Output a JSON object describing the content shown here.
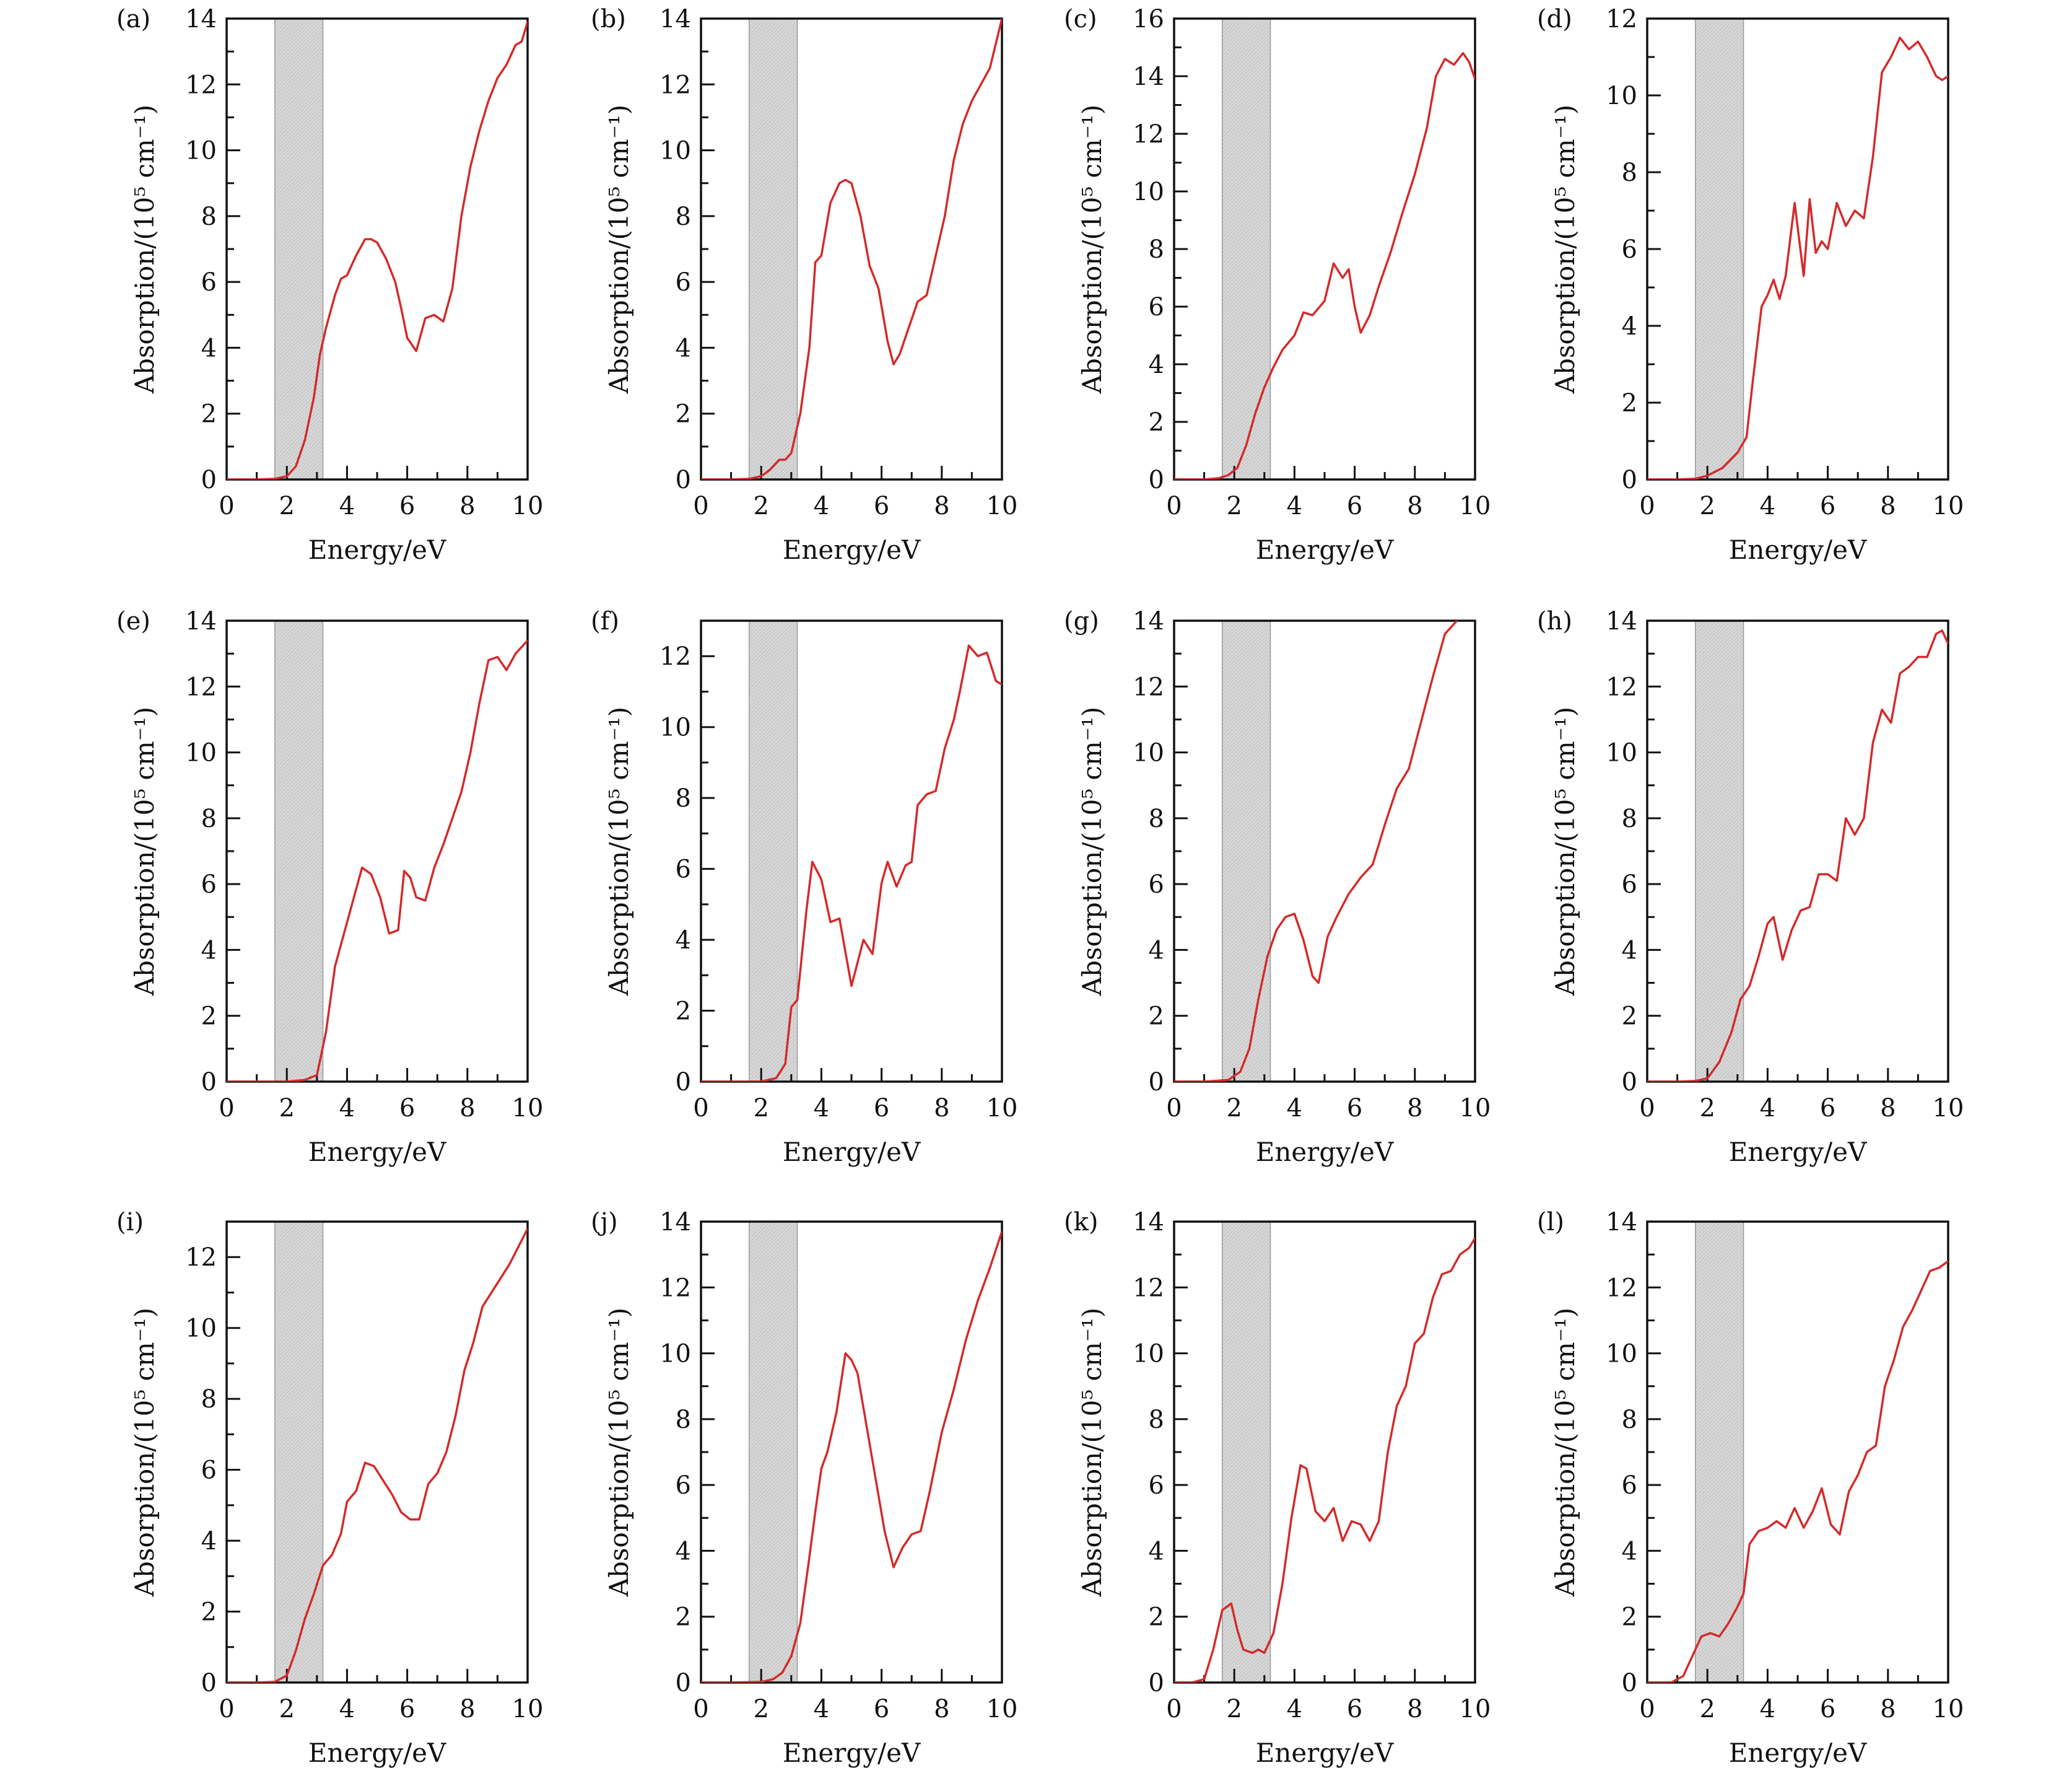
{
  "colors": {
    "curve": "#d42a2a",
    "band": "#d8d8d8",
    "axis": "#111111"
  },
  "chart_data": [
    {
      "type": "line",
      "label": "(a)",
      "xlabel": "Energy/eV",
      "ylabel": "Absorption/(10⁵ cm⁻¹)",
      "xlim": [
        0,
        10
      ],
      "ylim": [
        0,
        14
      ],
      "xticks": [
        0,
        2,
        4,
        6,
        8,
        10
      ],
      "yticks": [
        0,
        2,
        4,
        6,
        8,
        10,
        12,
        14
      ],
      "band": [
        1.6,
        3.2
      ],
      "x": [
        0,
        1,
        1.6,
        2.0,
        2.3,
        2.6,
        2.9,
        3.1,
        3.3,
        3.6,
        3.8,
        4.0,
        4.3,
        4.6,
        4.8,
        5.0,
        5.3,
        5.6,
        5.8,
        6.0,
        6.3,
        6.6,
        6.9,
        7.2,
        7.5,
        7.8,
        8.1,
        8.4,
        8.7,
        9.0,
        9.3,
        9.6,
        9.8,
        10.0
      ],
      "y": [
        0,
        0,
        0.02,
        0.1,
        0.4,
        1.2,
        2.5,
        3.8,
        4.6,
        5.6,
        6.1,
        6.2,
        6.8,
        7.3,
        7.3,
        7.2,
        6.7,
        6.0,
        5.2,
        4.3,
        3.9,
        4.9,
        5.0,
        4.8,
        5.8,
        8.0,
        9.5,
        10.6,
        11.5,
        12.2,
        12.6,
        13.2,
        13.3,
        13.9
      ]
    },
    {
      "type": "line",
      "label": "(b)",
      "xlabel": "Energy/eV",
      "ylabel": "Absorption/(10⁵ cm⁻¹)",
      "xlim": [
        0,
        10
      ],
      "ylim": [
        0,
        14
      ],
      "xticks": [
        0,
        2,
        4,
        6,
        8,
        10
      ],
      "yticks": [
        0,
        2,
        4,
        6,
        8,
        10,
        12,
        14
      ],
      "band": [
        1.6,
        3.2
      ],
      "x": [
        0,
        1,
        1.6,
        2.0,
        2.3,
        2.6,
        2.8,
        3.0,
        3.3,
        3.6,
        3.8,
        4.0,
        4.3,
        4.6,
        4.8,
        5.0,
        5.3,
        5.6,
        5.9,
        6.2,
        6.4,
        6.6,
        6.9,
        7.2,
        7.5,
        7.8,
        8.1,
        8.4,
        8.7,
        9.0,
        9.3,
        9.6,
        10.0
      ],
      "y": [
        0,
        0,
        0.02,
        0.1,
        0.3,
        0.6,
        0.6,
        0.8,
        2.0,
        4.0,
        6.6,
        6.8,
        8.4,
        9.0,
        9.1,
        9.0,
        8.0,
        6.5,
        5.8,
        4.2,
        3.5,
        3.8,
        4.6,
        5.4,
        5.6,
        6.8,
        8.0,
        9.7,
        10.8,
        11.5,
        12.0,
        12.5,
        14.0
      ]
    },
    {
      "type": "line",
      "label": "(c)",
      "xlabel": "Energy/eV",
      "ylabel": "Absorption/(10⁵ cm⁻¹)",
      "xlim": [
        0,
        10
      ],
      "ylim": [
        0,
        16
      ],
      "xticks": [
        0,
        2,
        4,
        6,
        8,
        10
      ],
      "yticks": [
        0,
        2,
        4,
        6,
        8,
        10,
        12,
        14,
        16
      ],
      "band": [
        1.6,
        3.2
      ],
      "x": [
        0,
        1,
        1.5,
        1.8,
        2.1,
        2.4,
        2.7,
        3.0,
        3.3,
        3.6,
        4.0,
        4.3,
        4.6,
        5.0,
        5.3,
        5.6,
        5.8,
        6.0,
        6.2,
        6.5,
        6.8,
        7.2,
        7.6,
        8.0,
        8.4,
        8.7,
        9.0,
        9.3,
        9.6,
        9.8,
        10.0
      ],
      "y": [
        0,
        0,
        0.05,
        0.15,
        0.4,
        1.2,
        2.3,
        3.2,
        3.9,
        4.5,
        5.0,
        5.8,
        5.7,
        6.2,
        7.5,
        7.0,
        7.3,
        6.0,
        5.1,
        5.7,
        6.7,
        7.9,
        9.3,
        10.6,
        12.2,
        14.0,
        14.6,
        14.4,
        14.8,
        14.5,
        13.9
      ]
    },
    {
      "type": "line",
      "label": "(d)",
      "xlabel": "Energy/eV",
      "ylabel": "Absorption/(10⁵ cm⁻¹)",
      "xlim": [
        0,
        10
      ],
      "ylim": [
        0,
        12
      ],
      "xticks": [
        0,
        2,
        4,
        6,
        8,
        10
      ],
      "yticks": [
        0,
        2,
        4,
        6,
        8,
        10,
        12
      ],
      "band": [
        1.6,
        3.2
      ],
      "x": [
        0,
        1,
        1.6,
        2.0,
        2.5,
        3.0,
        3.3,
        3.5,
        3.8,
        4.0,
        4.2,
        4.4,
        4.6,
        4.9,
        5.2,
        5.4,
        5.6,
        5.8,
        6.0,
        6.3,
        6.6,
        6.9,
        7.2,
        7.5,
        7.8,
        8.1,
        8.4,
        8.7,
        9.0,
        9.3,
        9.6,
        9.8,
        10.0
      ],
      "y": [
        0,
        0,
        0.02,
        0.1,
        0.3,
        0.7,
        1.1,
        2.5,
        4.5,
        4.8,
        5.2,
        4.7,
        5.3,
        7.2,
        5.3,
        7.3,
        5.9,
        6.2,
        6.0,
        7.2,
        6.6,
        7.0,
        6.8,
        8.4,
        10.6,
        11.0,
        11.5,
        11.2,
        11.4,
        11.0,
        10.5,
        10.4,
        10.5
      ]
    },
    {
      "type": "line",
      "label": "(e)",
      "xlabel": "Energy/eV",
      "ylabel": "Absorption/(10⁵ cm⁻¹)",
      "xlim": [
        0,
        10
      ],
      "ylim": [
        0,
        14
      ],
      "xticks": [
        0,
        2,
        4,
        6,
        8,
        10
      ],
      "yticks": [
        0,
        2,
        4,
        6,
        8,
        10,
        12,
        14
      ],
      "band": [
        1.6,
        3.2
      ],
      "x": [
        0,
        1,
        2.0,
        2.6,
        3.0,
        3.3,
        3.6,
        3.9,
        4.2,
        4.5,
        4.8,
        5.1,
        5.4,
        5.7,
        5.9,
        6.1,
        6.3,
        6.6,
        6.9,
        7.2,
        7.5,
        7.8,
        8.1,
        8.4,
        8.7,
        9.0,
        9.3,
        9.6,
        10.0
      ],
      "y": [
        0,
        0,
        0,
        0.05,
        0.2,
        1.5,
        3.5,
        4.5,
        5.5,
        6.5,
        6.3,
        5.6,
        4.5,
        4.6,
        6.4,
        6.2,
        5.6,
        5.5,
        6.5,
        7.2,
        8.0,
        8.8,
        10.0,
        11.5,
        12.8,
        12.9,
        12.5,
        13.0,
        13.4
      ]
    },
    {
      "type": "line",
      "label": "(f)",
      "xlabel": "Energy/eV",
      "ylabel": "Absorption/(10⁵ cm⁻¹)",
      "xlim": [
        0,
        10
      ],
      "ylim": [
        0,
        13
      ],
      "xticks": [
        0,
        2,
        4,
        6,
        8,
        10
      ],
      "yticks": [
        0,
        2,
        4,
        6,
        8,
        10,
        12
      ],
      "band": [
        1.6,
        3.2
      ],
      "x": [
        0,
        1,
        2.0,
        2.5,
        2.8,
        3.0,
        3.2,
        3.5,
        3.7,
        4.0,
        4.3,
        4.6,
        5.0,
        5.4,
        5.7,
        6.0,
        6.2,
        6.5,
        6.8,
        7.0,
        7.2,
        7.5,
        7.8,
        8.1,
        8.4,
        8.6,
        8.9,
        9.2,
        9.5,
        9.8,
        10.0
      ],
      "y": [
        0,
        0,
        0,
        0.1,
        0.5,
        2.1,
        2.3,
        4.8,
        6.2,
        5.7,
        4.5,
        4.6,
        2.7,
        4.0,
        3.6,
        5.6,
        6.2,
        5.5,
        6.1,
        6.2,
        7.8,
        8.1,
        8.2,
        9.4,
        10.2,
        11.0,
        12.3,
        12.0,
        12.1,
        11.3,
        11.2
      ]
    },
    {
      "type": "line",
      "label": "(g)",
      "xlabel": "Energy/eV",
      "ylabel": "Absorption/(10⁵ cm⁻¹)",
      "xlim": [
        0,
        10
      ],
      "ylim": [
        0,
        14
      ],
      "xticks": [
        0,
        2,
        4,
        6,
        8,
        10
      ],
      "yticks": [
        0,
        2,
        4,
        6,
        8,
        10,
        12,
        14
      ],
      "band": [
        1.6,
        3.2
      ],
      "x": [
        0,
        1,
        1.8,
        2.2,
        2.5,
        2.8,
        3.1,
        3.4,
        3.7,
        4.0,
        4.3,
        4.6,
        4.8,
        5.1,
        5.4,
        5.8,
        6.2,
        6.6,
        7.0,
        7.4,
        7.8,
        8.2,
        8.6,
        9.0,
        9.4
      ],
      "y": [
        0,
        0,
        0.05,
        0.3,
        1.0,
        2.5,
        3.8,
        4.6,
        5.0,
        5.1,
        4.3,
        3.2,
        3.0,
        4.4,
        5.0,
        5.7,
        6.2,
        6.6,
        7.8,
        8.9,
        9.5,
        10.9,
        12.3,
        13.6,
        14.0
      ]
    },
    {
      "type": "line",
      "label": "(h)",
      "xlabel": "Energy/eV",
      "ylabel": "Absorption/(10⁵ cm⁻¹)",
      "xlim": [
        0,
        10
      ],
      "ylim": [
        0,
        14
      ],
      "xticks": [
        0,
        2,
        4,
        6,
        8,
        10
      ],
      "yticks": [
        0,
        2,
        4,
        6,
        8,
        10,
        12,
        14
      ],
      "band": [
        1.6,
        3.2
      ],
      "x": [
        0,
        1,
        1.6,
        2.0,
        2.4,
        2.8,
        3.1,
        3.4,
        3.7,
        4.0,
        4.2,
        4.5,
        4.8,
        5.1,
        5.4,
        5.7,
        6.0,
        6.3,
        6.6,
        6.9,
        7.2,
        7.5,
        7.8,
        8.1,
        8.4,
        8.7,
        9.0,
        9.3,
        9.6,
        9.8,
        10.0
      ],
      "y": [
        0,
        0,
        0.02,
        0.1,
        0.6,
        1.5,
        2.5,
        2.9,
        3.8,
        4.8,
        5.0,
        3.7,
        4.6,
        5.2,
        5.3,
        6.3,
        6.3,
        6.1,
        8.0,
        7.5,
        8.0,
        10.3,
        11.3,
        10.9,
        12.4,
        12.6,
        12.9,
        12.9,
        13.6,
        13.7,
        13.3
      ]
    },
    {
      "type": "line",
      "label": "(i)",
      "xlabel": "Energy/eV",
      "ylabel": "Absorption/(10⁵ cm⁻¹)",
      "xlim": [
        0,
        10
      ],
      "ylim": [
        0,
        13
      ],
      "xticks": [
        0,
        2,
        4,
        6,
        8,
        10
      ],
      "yticks": [
        0,
        2,
        4,
        6,
        8,
        10,
        12
      ],
      "band": [
        1.6,
        3.2
      ],
      "x": [
        0,
        1,
        1.6,
        2.0,
        2.3,
        2.6,
        2.9,
        3.2,
        3.5,
        3.8,
        4.0,
        4.3,
        4.6,
        4.9,
        5.2,
        5.5,
        5.8,
        6.1,
        6.4,
        6.7,
        7.0,
        7.3,
        7.6,
        7.9,
        8.2,
        8.5,
        8.8,
        9.1,
        9.4,
        9.7,
        10.0
      ],
      "y": [
        0,
        0,
        0.02,
        0.2,
        0.9,
        1.8,
        2.5,
        3.3,
        3.6,
        4.2,
        5.1,
        5.4,
        6.2,
        6.1,
        5.7,
        5.3,
        4.8,
        4.6,
        4.6,
        5.6,
        5.9,
        6.5,
        7.5,
        8.8,
        9.6,
        10.6,
        11.0,
        11.4,
        11.8,
        12.3,
        12.8
      ]
    },
    {
      "type": "line",
      "label": "(j)",
      "xlabel": "Energy/eV",
      "ylabel": "Absorption/(10⁵ cm⁻¹)",
      "xlim": [
        0,
        10
      ],
      "ylim": [
        0,
        14
      ],
      "xticks": [
        0,
        2,
        4,
        6,
        8,
        10
      ],
      "yticks": [
        0,
        2,
        4,
        6,
        8,
        10,
        12,
        14
      ],
      "band": [
        1.6,
        3.2
      ],
      "x": [
        0,
        1,
        2.0,
        2.4,
        2.7,
        3.0,
        3.3,
        3.6,
        3.8,
        4.0,
        4.2,
        4.5,
        4.8,
        5.0,
        5.2,
        5.5,
        5.8,
        6.1,
        6.4,
        6.7,
        7.0,
        7.3,
        7.6,
        8.0,
        8.4,
        8.8,
        9.2,
        9.6,
        10.0
      ],
      "y": [
        0,
        0,
        0.02,
        0.1,
        0.3,
        0.8,
        1.8,
        3.8,
        5.2,
        6.5,
        7.0,
        8.2,
        10.0,
        9.8,
        9.4,
        7.8,
        6.2,
        4.6,
        3.5,
        4.1,
        4.5,
        4.6,
        5.8,
        7.6,
        8.9,
        10.4,
        11.6,
        12.6,
        13.7
      ]
    },
    {
      "type": "line",
      "label": "(k)",
      "xlabel": "Energy/eV",
      "ylabel": "Absorption/(10⁵ cm⁻¹)",
      "xlim": [
        0,
        10
      ],
      "ylim": [
        0,
        14
      ],
      "xticks": [
        0,
        2,
        4,
        6,
        8,
        10
      ],
      "yticks": [
        0,
        2,
        4,
        6,
        8,
        10,
        12,
        14
      ],
      "band": [
        1.6,
        3.2
      ],
      "x": [
        0,
        0.6,
        1.0,
        1.3,
        1.6,
        1.9,
        2.1,
        2.3,
        2.6,
        2.8,
        3.0,
        3.3,
        3.6,
        3.9,
        4.2,
        4.4,
        4.7,
        5.0,
        5.3,
        5.6,
        5.9,
        6.2,
        6.5,
        6.8,
        7.1,
        7.4,
        7.7,
        8.0,
        8.3,
        8.6,
        8.9,
        9.2,
        9.5,
        9.8,
        10.0
      ],
      "y": [
        0,
        0,
        0.1,
        1.0,
        2.2,
        2.4,
        1.6,
        1.0,
        0.9,
        1.0,
        0.9,
        1.5,
        3.0,
        5.0,
        6.6,
        6.5,
        5.2,
        4.9,
        5.3,
        4.3,
        4.9,
        4.8,
        4.3,
        4.9,
        7.0,
        8.4,
        9.0,
        10.3,
        10.6,
        11.7,
        12.4,
        12.5,
        13.0,
        13.2,
        13.5
      ]
    },
    {
      "type": "line",
      "label": "(l)",
      "xlabel": "Energy/eV",
      "ylabel": "Absorption/(10⁵ cm⁻¹)",
      "xlim": [
        0,
        10
      ],
      "ylim": [
        0,
        14
      ],
      "xticks": [
        0,
        2,
        4,
        6,
        8,
        10
      ],
      "yticks": [
        0,
        2,
        4,
        6,
        8,
        10,
        12,
        14
      ],
      "band": [
        1.6,
        3.2
      ],
      "x": [
        0,
        0.8,
        1.2,
        1.5,
        1.8,
        2.1,
        2.4,
        2.7,
        3.0,
        3.2,
        3.4,
        3.7,
        4.0,
        4.3,
        4.6,
        4.9,
        5.2,
        5.5,
        5.8,
        6.1,
        6.4,
        6.7,
        7.0,
        7.3,
        7.6,
        7.9,
        8.2,
        8.5,
        8.8,
        9.1,
        9.4,
        9.7,
        10.0
      ],
      "y": [
        0,
        0,
        0.2,
        0.8,
        1.4,
        1.5,
        1.4,
        1.8,
        2.3,
        2.7,
        4.2,
        4.6,
        4.7,
        4.9,
        4.7,
        5.3,
        4.7,
        5.2,
        5.9,
        4.8,
        4.5,
        5.8,
        6.3,
        7.0,
        7.2,
        9.0,
        9.8,
        10.8,
        11.3,
        11.9,
        12.5,
        12.6,
        12.8
      ]
    }
  ]
}
